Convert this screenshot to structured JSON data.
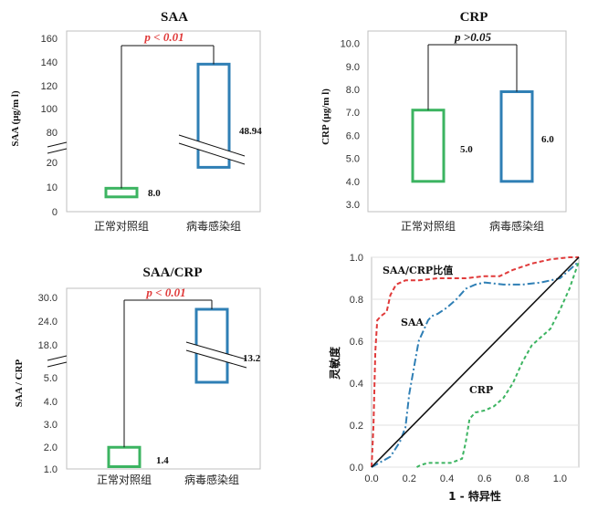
{
  "colors": {
    "green": "#3cb461",
    "blue": "#2f7fb5",
    "red": "#e03a3a",
    "black": "#111111",
    "grid": "#bfbfbf"
  },
  "chart_data": [
    {
      "type": "bar",
      "title": "SAA",
      "ylabel": "SAA (μg/m l)",
      "categories": [
        "正常对照组",
        "病毒感染组"
      ],
      "y_ticks": [
        "0",
        "10",
        "20",
        "80",
        "100",
        "120",
        "140",
        "160"
      ],
      "boxes": [
        {
          "category": "正常对照组",
          "low": 6,
          "high": 9.5,
          "label": "8.0",
          "color": "green"
        },
        {
          "category": "病毒感染组",
          "low": 18,
          "high": 138,
          "label": "48.94",
          "color": "blue"
        }
      ],
      "axis_break": true,
      "p_label": "p < 0.01",
      "p_color": "red"
    },
    {
      "type": "bar",
      "title": "CRP",
      "ylabel": "CRP (μg/m l)",
      "categories": [
        "正常对照组",
        "病毒感染组"
      ],
      "y_ticks": [
        "3.0",
        "4.0",
        "5.0",
        "6.0",
        "7.0",
        "8.0",
        "9.0",
        "10.0"
      ],
      "ylim": [
        2.8,
        10.2
      ],
      "boxes": [
        {
          "category": "正常对照组",
          "low": 4.0,
          "high": 7.1,
          "label": "5.0",
          "color": "green"
        },
        {
          "category": "病毒感染组",
          "low": 4.0,
          "high": 7.9,
          "label": "6.0",
          "color": "blue"
        }
      ],
      "axis_break": false,
      "p_label": "p >0.05",
      "p_color": "black"
    },
    {
      "type": "bar",
      "title": "SAA/CRP",
      "ylabel": "SAA / CRP",
      "categories": [
        "正常对照组",
        "病毒感染组"
      ],
      "y_ticks": [
        "1.0",
        "2.0",
        "3.0",
        "4.0",
        "5.0",
        "18.0",
        "24.0",
        "30.0"
      ],
      "boxes": [
        {
          "category": "正常对照组",
          "low": 1.1,
          "high": 1.95,
          "label": "1.4",
          "color": "green"
        },
        {
          "category": "病毒感染组",
          "low": 4.8,
          "high": 27,
          "label": "13.2",
          "color": "blue"
        }
      ],
      "axis_break": true,
      "p_label": "p < 0.01",
      "p_color": "red"
    },
    {
      "type": "line",
      "xlabel": "1 - 特异性",
      "ylabel": "灵敏度",
      "xlim": [
        0,
        1.1
      ],
      "ylim": [
        0,
        1.0
      ],
      "x_ticks": [
        "0.0",
        "0.2",
        "0.4",
        "0.6",
        "0.8",
        "1.0"
      ],
      "y_ticks": [
        "0.0",
        "0.2",
        "0.4",
        "0.6",
        "0.8",
        "1.0"
      ],
      "series": [
        {
          "name": "SAA/CRP比值",
          "color": "red",
          "dash": "5,3",
          "x": [
            0.0,
            0.01,
            0.02,
            0.03,
            0.05,
            0.08,
            0.1,
            0.13,
            0.18,
            0.25,
            0.35,
            0.5,
            0.6,
            0.68,
            0.75,
            0.85,
            0.95,
            1.05,
            1.1
          ],
          "y": [
            0.0,
            0.2,
            0.55,
            0.7,
            0.72,
            0.74,
            0.82,
            0.87,
            0.89,
            0.89,
            0.9,
            0.9,
            0.91,
            0.91,
            0.94,
            0.97,
            0.99,
            1.0,
            1.0
          ]
        },
        {
          "name": "SAA",
          "color": "blue",
          "dash": "8,3,2,3",
          "x": [
            0.0,
            0.1,
            0.15,
            0.18,
            0.2,
            0.22,
            0.24,
            0.25,
            0.28,
            0.3,
            0.32,
            0.35,
            0.4,
            0.45,
            0.5,
            0.55,
            0.6,
            0.7,
            0.8,
            0.9,
            1.0,
            1.1
          ],
          "y": [
            0.0,
            0.05,
            0.12,
            0.19,
            0.35,
            0.45,
            0.55,
            0.6,
            0.66,
            0.7,
            0.72,
            0.73,
            0.76,
            0.8,
            0.85,
            0.87,
            0.88,
            0.87,
            0.87,
            0.88,
            0.9,
            0.98
          ]
        },
        {
          "name": "CRP",
          "color": "green",
          "dash": "4,3",
          "x": [
            0.24,
            0.26,
            0.3,
            0.36,
            0.42,
            0.48,
            0.5,
            0.52,
            0.55,
            0.6,
            0.65,
            0.7,
            0.75,
            0.8,
            0.85,
            0.9,
            0.95,
            1.0,
            1.05,
            1.1
          ],
          "y": [
            0.0,
            0.01,
            0.02,
            0.02,
            0.02,
            0.04,
            0.12,
            0.23,
            0.26,
            0.27,
            0.29,
            0.33,
            0.4,
            0.5,
            0.58,
            0.62,
            0.66,
            0.75,
            0.85,
            0.98
          ]
        },
        {
          "name": "",
          "color": "black",
          "dash": "",
          "x": [
            0.0,
            1.1
          ],
          "y": [
            0.0,
            1.0
          ]
        }
      ],
      "curve_labels": [
        "SAA/CRP比值",
        "SAA",
        "CRP"
      ]
    }
  ]
}
